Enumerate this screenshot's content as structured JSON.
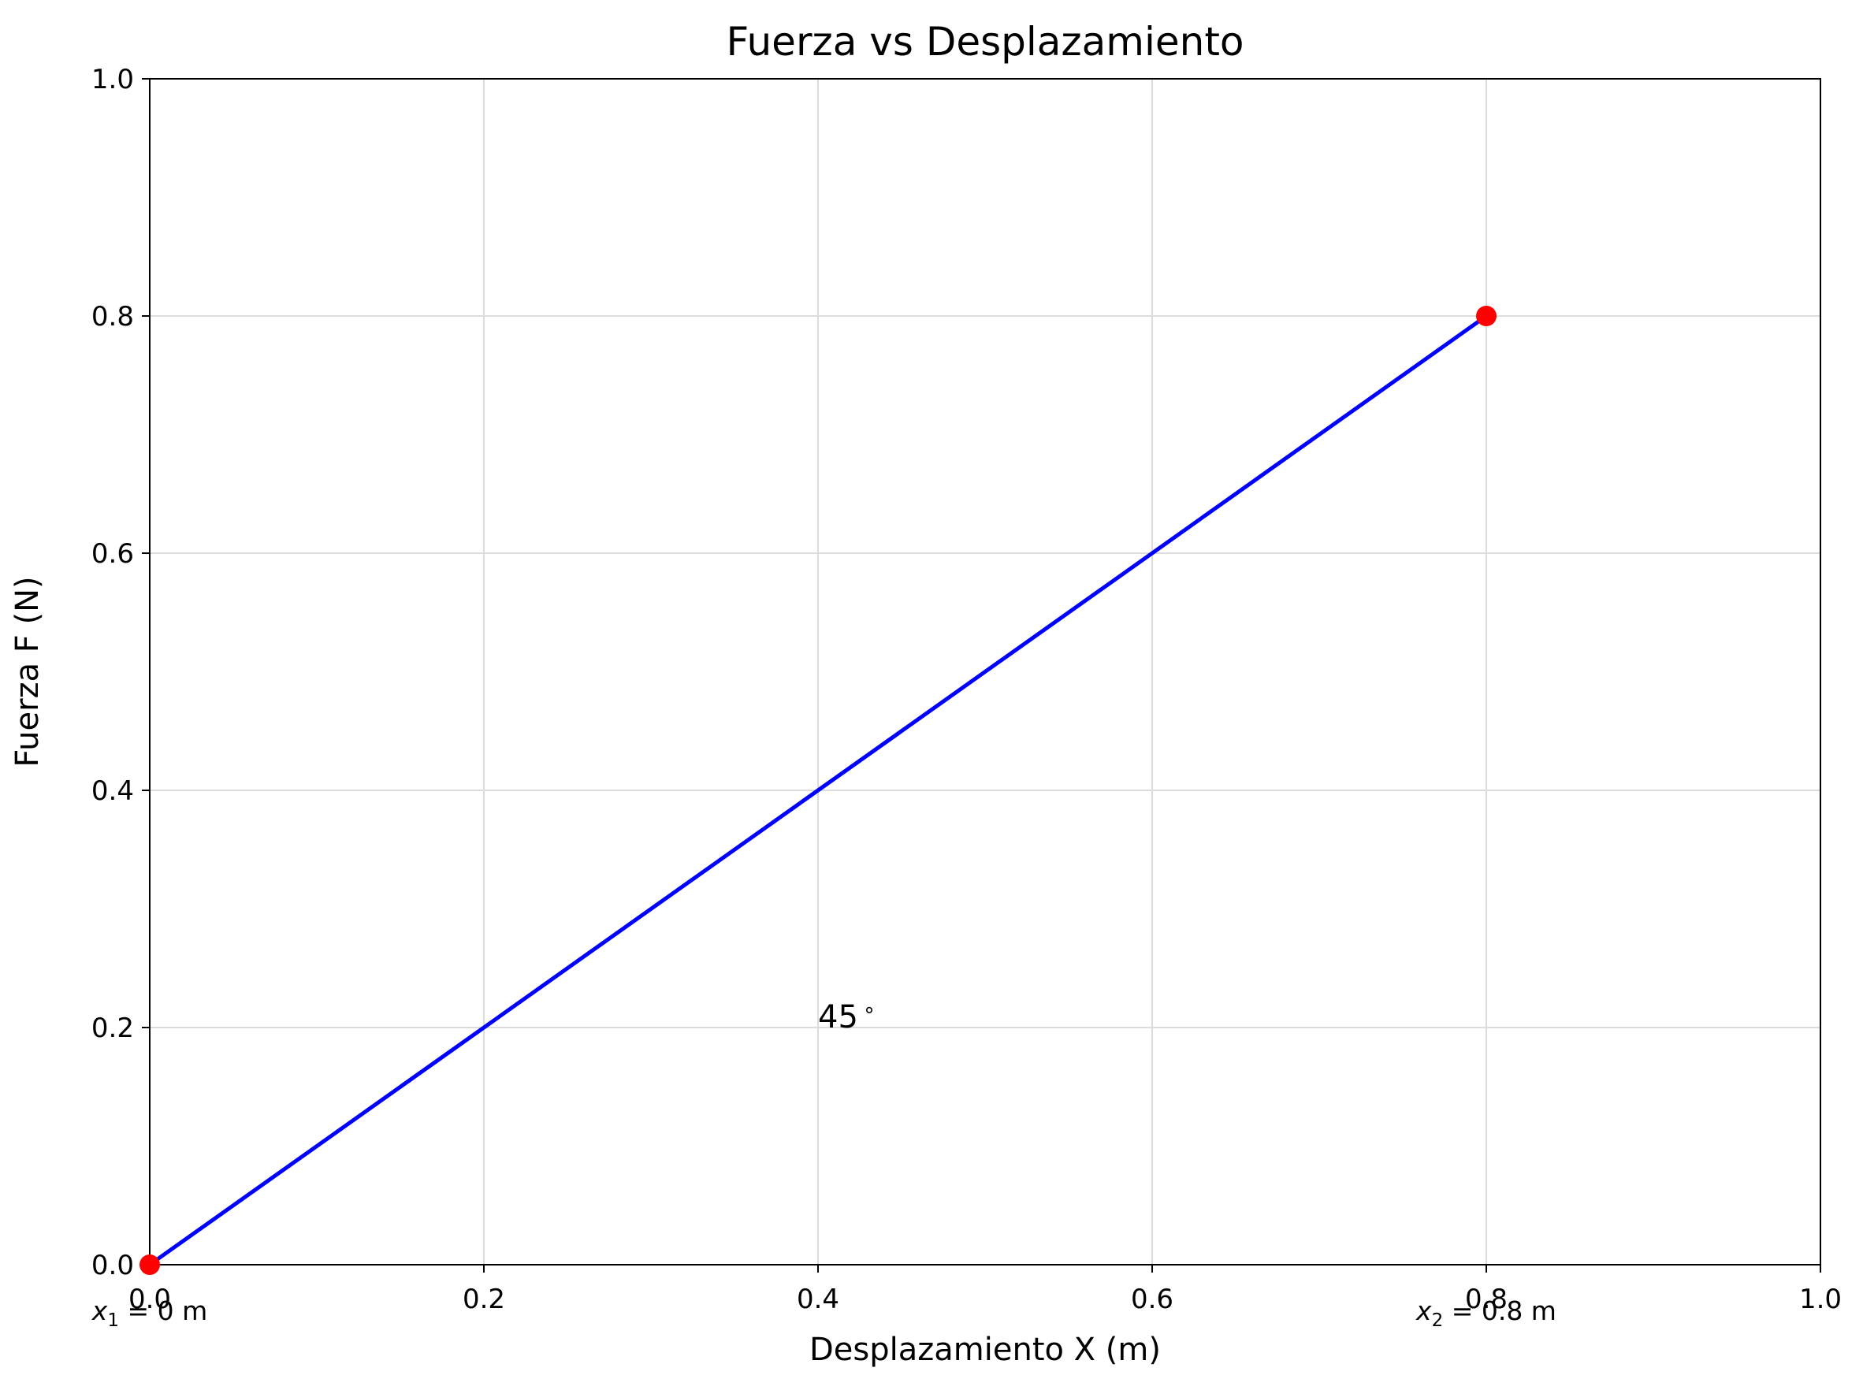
{
  "chart_data": {
    "type": "line",
    "title": "Fuerza vs Desplazamiento",
    "xlabel": "Desplazamiento X (m)",
    "ylabel": "Fuerza F (N)",
    "xlim": [
      0.0,
      1.0
    ],
    "ylim": [
      0.0,
      1.0
    ],
    "xticks": [
      0.0,
      0.2,
      0.4,
      0.6,
      0.8,
      1.0
    ],
    "xtick_labels": [
      "0.0",
      "0.2",
      "0.4",
      "0.6",
      "0.8",
      "1.0"
    ],
    "yticks": [
      0.0,
      0.2,
      0.4,
      0.6,
      0.8,
      1.0
    ],
    "ytick_labels": [
      "0.0",
      "0.2",
      "0.4",
      "0.6",
      "0.8",
      "1.0"
    ],
    "grid": true,
    "series": [
      {
        "x": [
          0.0,
          0.8
        ],
        "y": [
          0.0,
          0.8
        ],
        "color": "#0000ff"
      }
    ],
    "points": [
      {
        "x": 0.0,
        "y": 0.0,
        "color": "#ff0000",
        "label_var": "x",
        "label_sub": "1",
        "label_rest": " = 0 m"
      },
      {
        "x": 0.8,
        "y": 0.8,
        "color": "#ff0000",
        "label_var": "x",
        "label_sub": "2",
        "label_rest": " = 0.8 m"
      }
    ],
    "annotations": [
      {
        "x": 0.4,
        "y": 0.2,
        "text": "45",
        "superscript": "∘"
      }
    ]
  }
}
